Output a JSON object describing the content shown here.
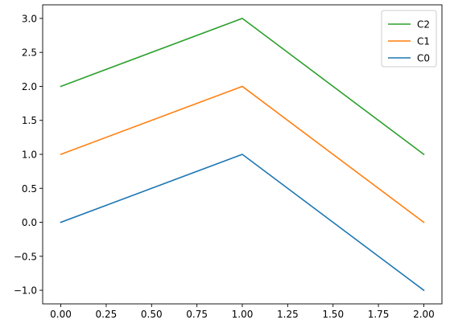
{
  "chart_data": {
    "type": "line",
    "x": [
      0,
      1,
      2
    ],
    "series": [
      {
        "name": "C2",
        "values": [
          2,
          3,
          1
        ],
        "color": "#2ca02c"
      },
      {
        "name": "C1",
        "values": [
          1,
          2,
          0
        ],
        "color": "#ff7f0e"
      },
      {
        "name": "C0",
        "values": [
          0,
          1,
          -1
        ],
        "color": "#1f77b4"
      }
    ],
    "xlim": [
      -0.1,
      2.1
    ],
    "ylim": [
      -1.2,
      3.2
    ],
    "x_ticks": [
      "0.00",
      "0.25",
      "0.50",
      "0.75",
      "1.00",
      "1.25",
      "1.50",
      "1.75",
      "2.00"
    ],
    "y_ticks": [
      "−1.0",
      "−0.5",
      "0.0",
      "0.5",
      "1.0",
      "1.5",
      "2.0",
      "2.5",
      "3.0"
    ],
    "title": "",
    "xlabel": "",
    "ylabel": "",
    "grid": false,
    "legend_position": "top-right"
  }
}
